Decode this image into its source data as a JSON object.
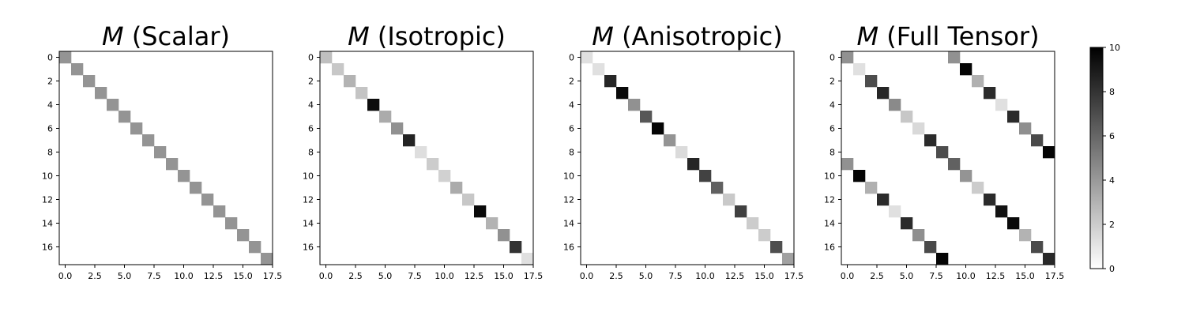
{
  "chart_data": [
    {
      "type": "heatmap",
      "title_symbol": "M",
      "title_suffix": " (Scalar)",
      "n": 18,
      "x_ticks": [
        "0.0",
        "2.5",
        "5.0",
        "7.5",
        "10.0",
        "12.5",
        "15.0",
        "17.5"
      ],
      "y_ticks": [
        "0",
        "2",
        "4",
        "6",
        "8",
        "10",
        "12",
        "14",
        "16"
      ],
      "vmin": 0,
      "vmax": 10,
      "cells": [
        [
          0,
          0,
          4.2
        ],
        [
          1,
          1,
          4.2
        ],
        [
          2,
          2,
          4.2
        ],
        [
          3,
          3,
          4.2
        ],
        [
          4,
          4,
          4.2
        ],
        [
          5,
          5,
          4.2
        ],
        [
          6,
          6,
          4.2
        ],
        [
          7,
          7,
          4.2
        ],
        [
          8,
          8,
          4.2
        ],
        [
          9,
          9,
          4.2
        ],
        [
          10,
          10,
          4.2
        ],
        [
          11,
          11,
          4.2
        ],
        [
          12,
          12,
          4.2
        ],
        [
          13,
          13,
          4.2
        ],
        [
          14,
          14,
          4.2
        ],
        [
          15,
          15,
          4.2
        ],
        [
          16,
          16,
          4.2
        ],
        [
          17,
          17,
          4.2
        ]
      ]
    },
    {
      "type": "heatmap",
      "title_symbol": "M",
      "title_suffix": " (Isotropic)",
      "n": 18,
      "x_ticks": [
        "0.0",
        "2.5",
        "5.0",
        "7.5",
        "10.0",
        "12.5",
        "15.0",
        "17.5"
      ],
      "y_ticks": [
        "0",
        "2",
        "4",
        "6",
        "8",
        "10",
        "12",
        "14",
        "16"
      ],
      "vmin": 0,
      "vmax": 10,
      "cells": [
        [
          0,
          0,
          2.5
        ],
        [
          1,
          1,
          2.2
        ],
        [
          2,
          2,
          3.0
        ],
        [
          3,
          3,
          2.3
        ],
        [
          4,
          4,
          9.5
        ],
        [
          5,
          5,
          3.3
        ],
        [
          6,
          6,
          4.3
        ],
        [
          7,
          7,
          8.6
        ],
        [
          8,
          8,
          1.3
        ],
        [
          9,
          9,
          2.0
        ],
        [
          10,
          10,
          1.8
        ],
        [
          11,
          11,
          3.3
        ],
        [
          12,
          12,
          2.2
        ],
        [
          13,
          13,
          9.6
        ],
        [
          14,
          14,
          3.0
        ],
        [
          15,
          15,
          4.3
        ],
        [
          16,
          16,
          8.0
        ],
        [
          17,
          17,
          1.2
        ]
      ]
    },
    {
      "type": "heatmap",
      "title_symbol": "M",
      "title_suffix": " (Anisotropic)",
      "n": 18,
      "x_ticks": [
        "0.0",
        "2.5",
        "5.0",
        "7.5",
        "10.0",
        "12.5",
        "15.0",
        "17.5"
      ],
      "y_ticks": [
        "0",
        "2",
        "4",
        "6",
        "8",
        "10",
        "12",
        "14",
        "16"
      ],
      "vmin": 0,
      "vmax": 10,
      "cells": [
        [
          0,
          0,
          1.2
        ],
        [
          1,
          1,
          1.2
        ],
        [
          2,
          2,
          8.5
        ],
        [
          3,
          3,
          9.6
        ],
        [
          4,
          4,
          4.3
        ],
        [
          5,
          5,
          6.6
        ],
        [
          6,
          6,
          9.8
        ],
        [
          7,
          7,
          4.2
        ],
        [
          8,
          8,
          1.4
        ],
        [
          9,
          9,
          8.5
        ],
        [
          10,
          10,
          7.4
        ],
        [
          11,
          11,
          6.2
        ],
        [
          12,
          12,
          2.1
        ],
        [
          13,
          13,
          7.5
        ],
        [
          14,
          14,
          2.0
        ],
        [
          15,
          15,
          2.0
        ],
        [
          16,
          16,
          6.9
        ],
        [
          17,
          17,
          3.7
        ]
      ]
    },
    {
      "type": "heatmap",
      "title_symbol": "M",
      "title_suffix": " (Full Tensor)",
      "n": 18,
      "x_ticks": [
        "0.0",
        "2.5",
        "5.0",
        "7.5",
        "10.0",
        "12.5",
        "15.0",
        "17.5"
      ],
      "y_ticks": [
        "0",
        "2",
        "4",
        "6",
        "8",
        "10",
        "12",
        "14",
        "16"
      ],
      "vmin": 0,
      "vmax": 10,
      "cells": [
        [
          0,
          0,
          4.3
        ],
        [
          1,
          1,
          1.2
        ],
        [
          2,
          2,
          7.0
        ],
        [
          3,
          3,
          8.5
        ],
        [
          4,
          4,
          4.6
        ],
        [
          5,
          5,
          2.2
        ],
        [
          6,
          6,
          1.5
        ],
        [
          7,
          7,
          8.3
        ],
        [
          8,
          8,
          7.0
        ],
        [
          9,
          9,
          6.2
        ],
        [
          10,
          10,
          4.2
        ],
        [
          11,
          11,
          2.0
        ],
        [
          12,
          12,
          8.3
        ],
        [
          13,
          13,
          9.3
        ],
        [
          14,
          14,
          9.6
        ],
        [
          15,
          15,
          3.0
        ],
        [
          16,
          16,
          7.1
        ],
        [
          17,
          17,
          8.4
        ],
        [
          0,
          9,
          4.3
        ],
        [
          1,
          10,
          9.8
        ],
        [
          2,
          11,
          3.1
        ],
        [
          3,
          12,
          8.3
        ],
        [
          4,
          13,
          1.2
        ],
        [
          5,
          14,
          8.3
        ],
        [
          6,
          15,
          4.4
        ],
        [
          7,
          16,
          7.1
        ],
        [
          8,
          17,
          9.8
        ],
        [
          9,
          0,
          4.3
        ],
        [
          10,
          1,
          9.8
        ],
        [
          11,
          2,
          3.1
        ],
        [
          12,
          3,
          8.3
        ],
        [
          13,
          4,
          1.2
        ],
        [
          14,
          5,
          8.3
        ],
        [
          15,
          6,
          4.4
        ],
        [
          16,
          7,
          7.1
        ],
        [
          17,
          8,
          9.8
        ]
      ]
    }
  ],
  "colorbar": {
    "ticks": [
      "0",
      "2",
      "4",
      "6",
      "8",
      "10"
    ]
  }
}
